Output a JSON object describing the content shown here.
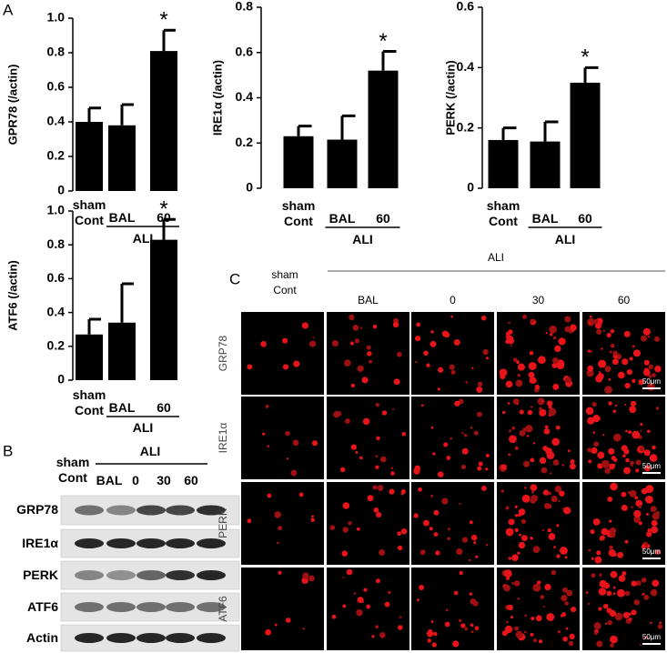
{
  "panel_a": {
    "label": "A"
  },
  "chart_data": [
    {
      "type": "bar",
      "ylabel": "GPR78 (/actin)",
      "categories": [
        "sham Cont",
        "BAL",
        "60"
      ],
      "group_label": "ALI",
      "values": [
        0.4,
        0.38,
        0.81
      ],
      "errors": [
        0.08,
        0.12,
        0.12
      ],
      "color": "#000000",
      "marker": "*",
      "significant": [
        false,
        false,
        true
      ],
      "ylim": [
        0,
        1.0
      ],
      "yticks": [
        0,
        0.2,
        0.4,
        0.6,
        0.8,
        {
          "value": 1.0,
          "label": "1.0"
        }
      ]
    },
    {
      "type": "bar",
      "ylabel": "IRE1α (/actin)",
      "categories": [
        "sham Cont",
        "BAL",
        "60"
      ],
      "group_label": "ALI",
      "values": [
        0.23,
        0.215,
        0.52
      ],
      "errors": [
        0.045,
        0.105,
        0.085
      ],
      "color": "#000000",
      "marker": "*",
      "significant": [
        false,
        false,
        true
      ],
      "ylim": [
        0,
        0.8
      ],
      "yticks": [
        0,
        0.2,
        0.4,
        0.6,
        0.8
      ]
    },
    {
      "type": "bar",
      "ylabel": "PERK (/actin)",
      "categories": [
        "sham Cont",
        "BAL",
        "60"
      ],
      "group_label": "ALI",
      "values": [
        0.16,
        0.155,
        0.35
      ],
      "errors": [
        0.04,
        0.065,
        0.05
      ],
      "color": "#000000",
      "marker": "*",
      "significant": [
        false,
        false,
        true
      ],
      "ylim": [
        0,
        0.6
      ],
      "yticks": [
        0,
        0.2,
        0.4,
        0.6
      ]
    },
    {
      "type": "bar",
      "ylabel": "ATF6 (/actin)",
      "categories": [
        "sham Cont",
        "BAL",
        "60"
      ],
      "group_label": "ALI",
      "values": [
        0.27,
        0.34,
        0.83
      ],
      "errors": [
        0.09,
        0.23,
        0.12
      ],
      "color": "#000000",
      "marker": "*",
      "significant": [
        false,
        false,
        true
      ],
      "ylim": [
        0,
        1.0
      ],
      "yticks": [
        0,
        0.2,
        0.4,
        0.6,
        0.8,
        {
          "value": 1.0,
          "label": "1.0"
        }
      ]
    }
  ],
  "panel_b": {
    "label": "B",
    "control": "sham Cont",
    "group": "ALI",
    "lanes": [
      "BAL",
      "0",
      "30",
      "60"
    ],
    "rows": [
      "GRP78",
      "IRE1α",
      "PERK",
      "ATF6",
      "Actin"
    ]
  },
  "panel_c": {
    "label": "C",
    "control": "sham Cont",
    "group": "ALI",
    "columns": [
      "BAL",
      "0",
      "30",
      "60"
    ],
    "rows": [
      "GRP78",
      "IRE1α",
      "PERK",
      "ATF6"
    ],
    "scale_bar": "50μm"
  }
}
